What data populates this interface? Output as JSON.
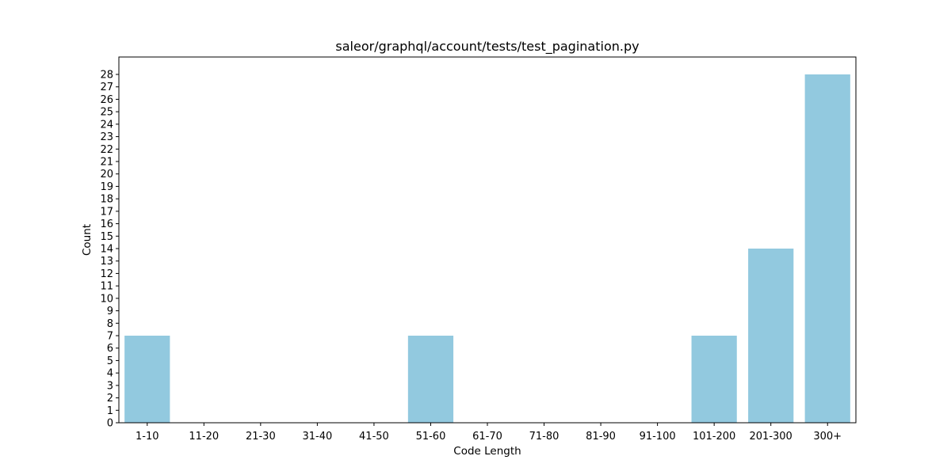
{
  "chart_data": {
    "type": "bar",
    "title": "saleor/graphql/account/tests/test_pagination.py",
    "xlabel": "Code Length",
    "ylabel": "Count",
    "categories": [
      "1-10",
      "11-20",
      "21-30",
      "31-40",
      "41-50",
      "51-60",
      "61-70",
      "71-80",
      "81-90",
      "91-100",
      "101-200",
      "201-300",
      "300+"
    ],
    "values": [
      7,
      0,
      0,
      0,
      0,
      7,
      0,
      0,
      0,
      0,
      7,
      14,
      28
    ],
    "ylim": [
      0,
      29.4
    ],
    "yticks": [
      0,
      1,
      2,
      3,
      4,
      5,
      6,
      7,
      8,
      9,
      10,
      11,
      12,
      13,
      14,
      15,
      16,
      17,
      18,
      19,
      20,
      21,
      22,
      23,
      24,
      25,
      26,
      27,
      28
    ],
    "bar_color": "#92c9df",
    "grid": false,
    "legend": "none"
  }
}
